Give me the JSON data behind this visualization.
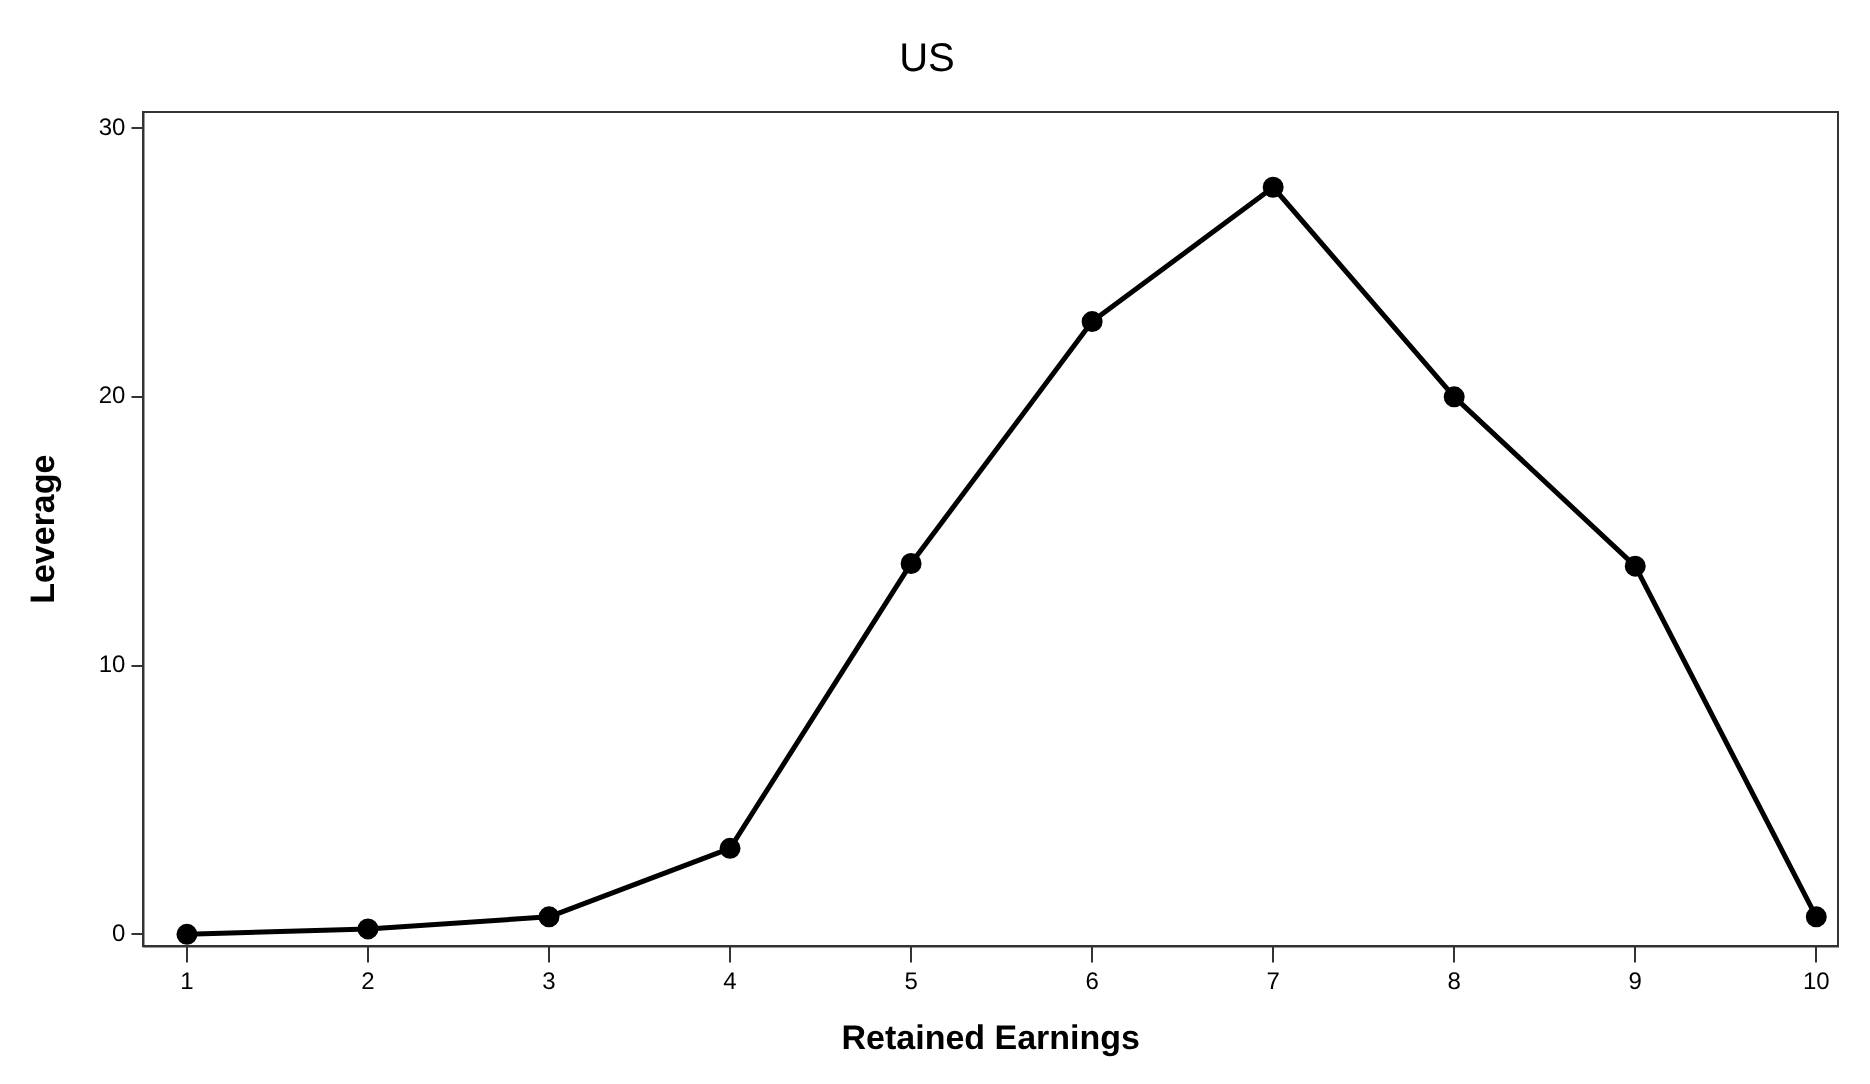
{
  "chart_data": {
    "type": "line",
    "title": "US",
    "xlabel": "Retained Earnings",
    "ylabel": "Leverage",
    "x": [
      1,
      2,
      3,
      4,
      5,
      6,
      7,
      8,
      9,
      10
    ],
    "values": [
      0,
      0.2,
      0.65,
      3.2,
      13.8,
      22.8,
      27.8,
      20.0,
      13.7,
      0.65
    ],
    "color": "#000000",
    "marker": "circle",
    "line_style": "solid",
    "grid": false,
    "legend": false,
    "xlim": [
      0.76,
      10.12
    ],
    "xticks": [
      1,
      2,
      3,
      4,
      5,
      6,
      7,
      8,
      9,
      10
    ],
    "ylim": [
      -0.45,
      30.6
    ],
    "yticks": [
      0,
      10,
      20,
      30
    ]
  }
}
